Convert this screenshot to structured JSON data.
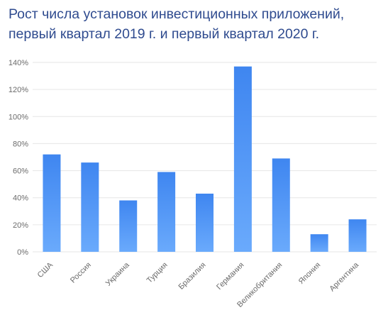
{
  "chart_data": {
    "type": "bar",
    "title": [
      "Рост числа установок инвестиционных приложений,",
      "первый квартал 2019 г. и первый квартал 2020 г."
    ],
    "categories": [
      "США",
      "Россия",
      "Украина",
      "Турция",
      "Бразилия",
      "Германия",
      "Великобритания",
      "Япония",
      "Аргентина"
    ],
    "values": [
      72,
      66,
      38,
      59,
      43,
      137,
      69,
      13,
      24
    ],
    "ylim": [
      0,
      140
    ],
    "yticks": [
      "0%",
      "20%",
      "40%",
      "60%",
      "80%",
      "100%",
      "120%",
      "140%"
    ],
    "grid": true,
    "xlabel": "",
    "ylabel": ""
  },
  "colors": {
    "bar_top": "#3f86f0",
    "bar_bottom": "#6aaafc",
    "title": "#2f4b8f",
    "grid": "#e6e6e6"
  }
}
